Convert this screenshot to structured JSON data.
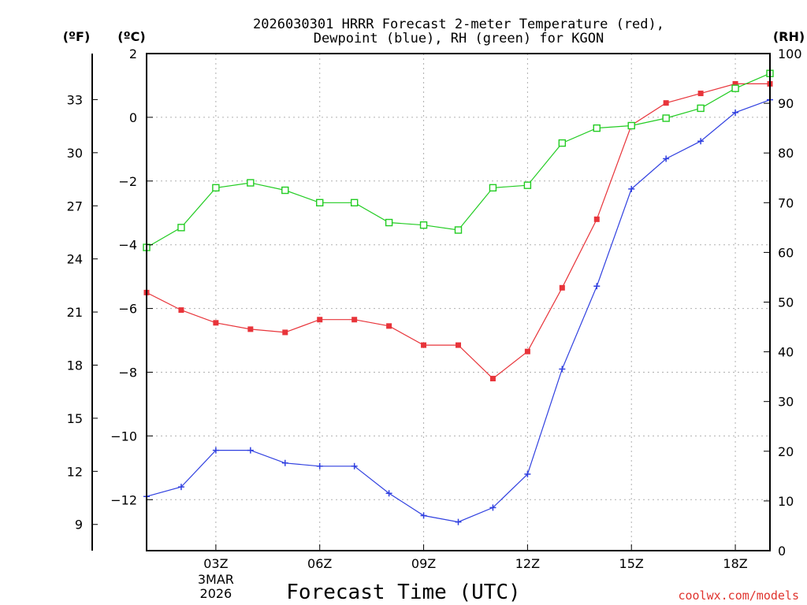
{
  "chart_data": {
    "type": "line",
    "title_line1": "2026030301 HRRR Forecast 2-meter Temperature (red),",
    "title_line2": "Dewpoint (blue), RH (green) for KGON",
    "xlabel": "Forecast Time (UTC)",
    "credit": "coolwx.com/models",
    "unit_labels": {
      "fahrenheit": "(ºF)",
      "celsius": "(ºC)",
      "rh": "(RH)"
    },
    "x_hours": [
      1,
      2,
      3,
      4,
      5,
      6,
      7,
      8,
      9,
      10,
      11,
      12,
      13,
      14,
      15,
      16,
      17,
      18,
      19
    ],
    "xlim": [
      1,
      19
    ],
    "x_ticks": [
      {
        "hour": 3,
        "label": "03Z",
        "sub1": "3MAR",
        "sub2": "2026"
      },
      {
        "hour": 6,
        "label": "06Z"
      },
      {
        "hour": 9,
        "label": "09Z"
      },
      {
        "hour": 12,
        "label": "12Z"
      },
      {
        "hour": 15,
        "label": "15Z"
      },
      {
        "hour": 18,
        "label": "18Z"
      }
    ],
    "celsius_axis": {
      "ylim": [
        -13.6,
        2
      ],
      "ticks": [
        2,
        0,
        -2,
        -4,
        -6,
        -8,
        -10,
        -12
      ]
    },
    "fahrenheit_axis": {
      "ticks": [
        33,
        30,
        27,
        24,
        21,
        18,
        15,
        12,
        9
      ]
    },
    "rh_axis": {
      "ylim": [
        0,
        100
      ],
      "ticks": [
        100,
        90,
        80,
        70,
        60,
        50,
        40,
        30,
        20,
        10,
        0
      ]
    },
    "series": [
      {
        "name": "Temperature",
        "axis": "celsius",
        "color": "#e8343a",
        "marker": "filled-square",
        "values": [
          -5.5,
          -6.05,
          -6.45,
          -6.65,
          -6.75,
          -6.35,
          -6.35,
          -6.55,
          -7.15,
          -7.15,
          -8.2,
          -7.35,
          -5.35,
          -3.2,
          -0.25,
          0.45,
          0.75,
          1.05,
          1.05
        ]
      },
      {
        "name": "Dewpoint",
        "axis": "celsius",
        "color": "#3040e0",
        "marker": "plus",
        "values": [
          -11.9,
          -11.6,
          -10.45,
          -10.45,
          -10.85,
          -10.95,
          -10.95,
          -11.8,
          -12.5,
          -12.7,
          -12.25,
          -11.2,
          -7.9,
          -5.3,
          -2.25,
          -1.3,
          -0.75,
          0.15,
          0.55
        ]
      },
      {
        "name": "Relative Humidity",
        "axis": "rh",
        "color": "#22cc22",
        "marker": "open-square",
        "values": [
          61,
          65,
          73,
          74,
          72.5,
          70,
          70,
          66,
          65.5,
          64.5,
          73,
          73.5,
          82,
          85,
          85.5,
          87,
          89,
          93,
          96
        ]
      }
    ]
  }
}
